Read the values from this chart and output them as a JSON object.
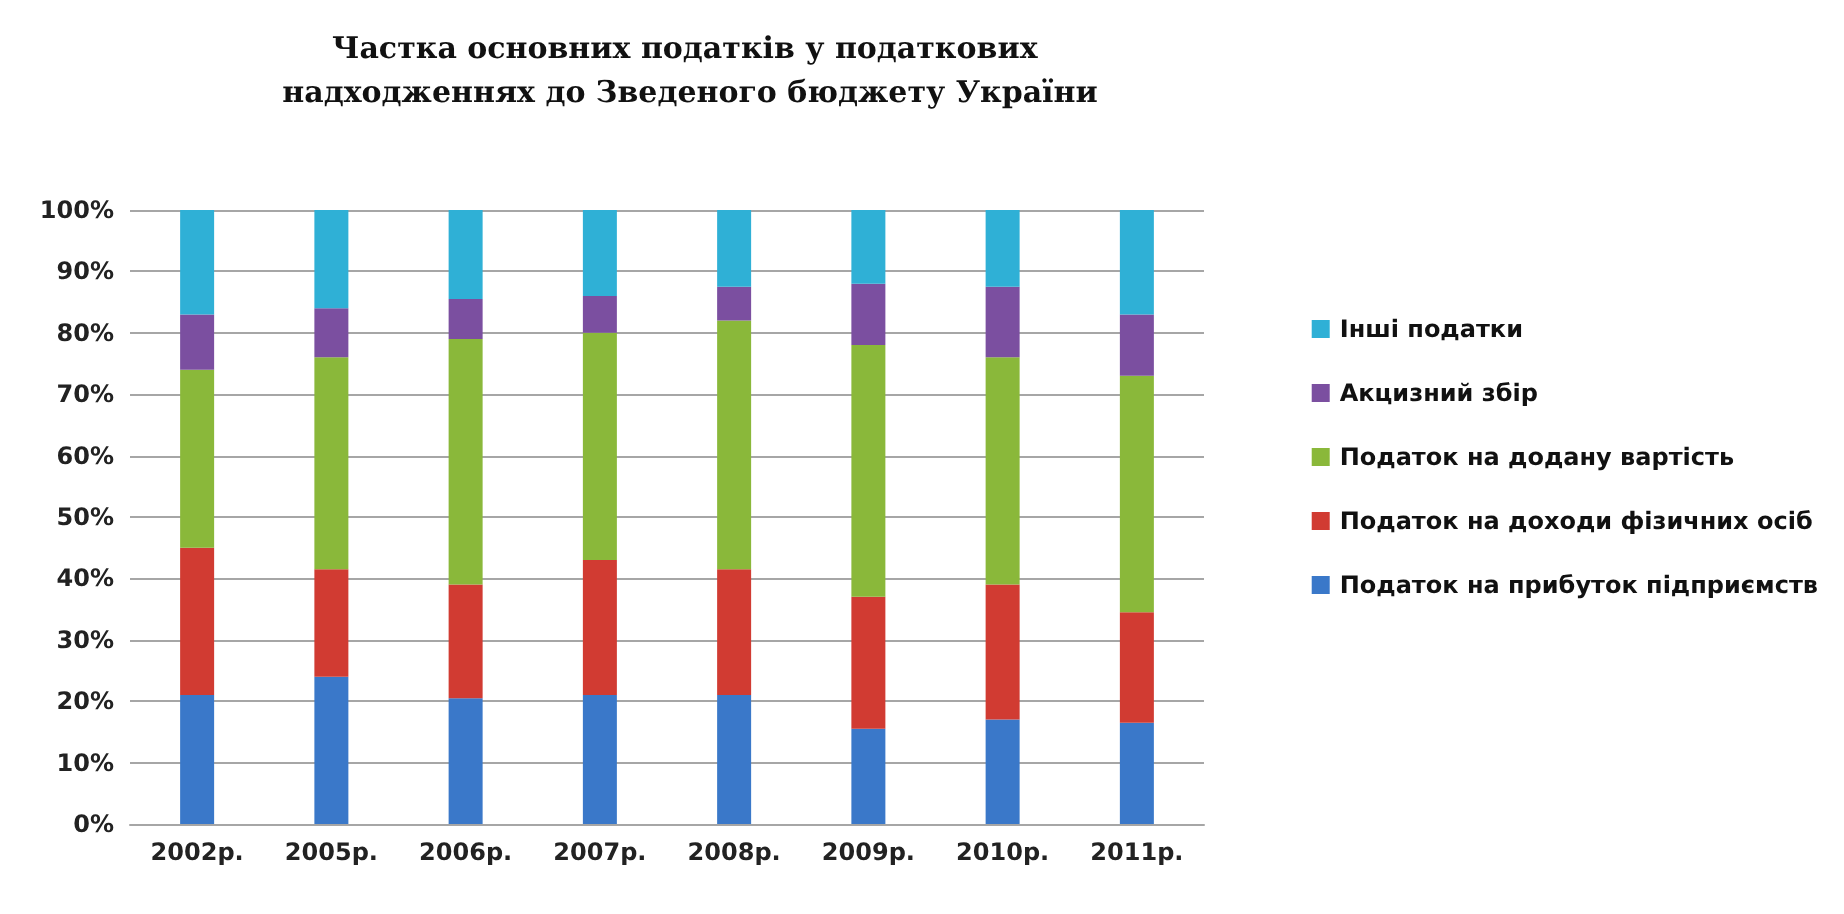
{
  "chart_data": {
    "type": "bar",
    "stacked": true,
    "title": "Частка основних податків у податкових надходженнях до Зведеного бюджету України",
    "categories": [
      "2002р.",
      "2005р.",
      "2006р.",
      "2007р.",
      "2008р.",
      "2009р.",
      "2010р.",
      "2011р."
    ],
    "series": [
      {
        "name": "Податок на прибуток підприємств",
        "color": "#3a78c9",
        "values": [
          21,
          24,
          20.5,
          21,
          21,
          15.5,
          17,
          16.5
        ]
      },
      {
        "name": "Податок на доходи фізичних осіб",
        "color": "#d13b32",
        "values": [
          24,
          17.5,
          18.5,
          22,
          20.5,
          21.5,
          22,
          18
        ]
      },
      {
        "name": "Податок на додану вартість",
        "color": "#8ab83a",
        "values": [
          29,
          34.5,
          40,
          37,
          40.5,
          41,
          37,
          38.5
        ]
      },
      {
        "name": "Акцизний збір",
        "color": "#7b4fa0",
        "values": [
          9,
          8,
          6.5,
          6,
          5.5,
          10,
          11.5,
          10
        ]
      },
      {
        "name": "Інші податки",
        "color": "#2fb0d6",
        "values": [
          17,
          16,
          14.5,
          14,
          12.5,
          12,
          12.5,
          17
        ]
      }
    ],
    "ylim": [
      0,
      100
    ],
    "yticks": [
      {
        "value": 0,
        "label": "0%"
      },
      {
        "value": 10,
        "label": "10%"
      },
      {
        "value": 20,
        "label": "20%"
      },
      {
        "value": 30,
        "label": "30%"
      },
      {
        "value": 40,
        "label": "40%"
      },
      {
        "value": 50,
        "label": "50%"
      },
      {
        "value": 60,
        "label": "60%"
      },
      {
        "value": 70,
        "label": "70%"
      },
      {
        "value": 80,
        "label": "80%"
      },
      {
        "value": 90,
        "label": "90%"
      },
      {
        "value": 100,
        "label": "100%"
      }
    ],
    "grid": "y",
    "legend": "right"
  }
}
